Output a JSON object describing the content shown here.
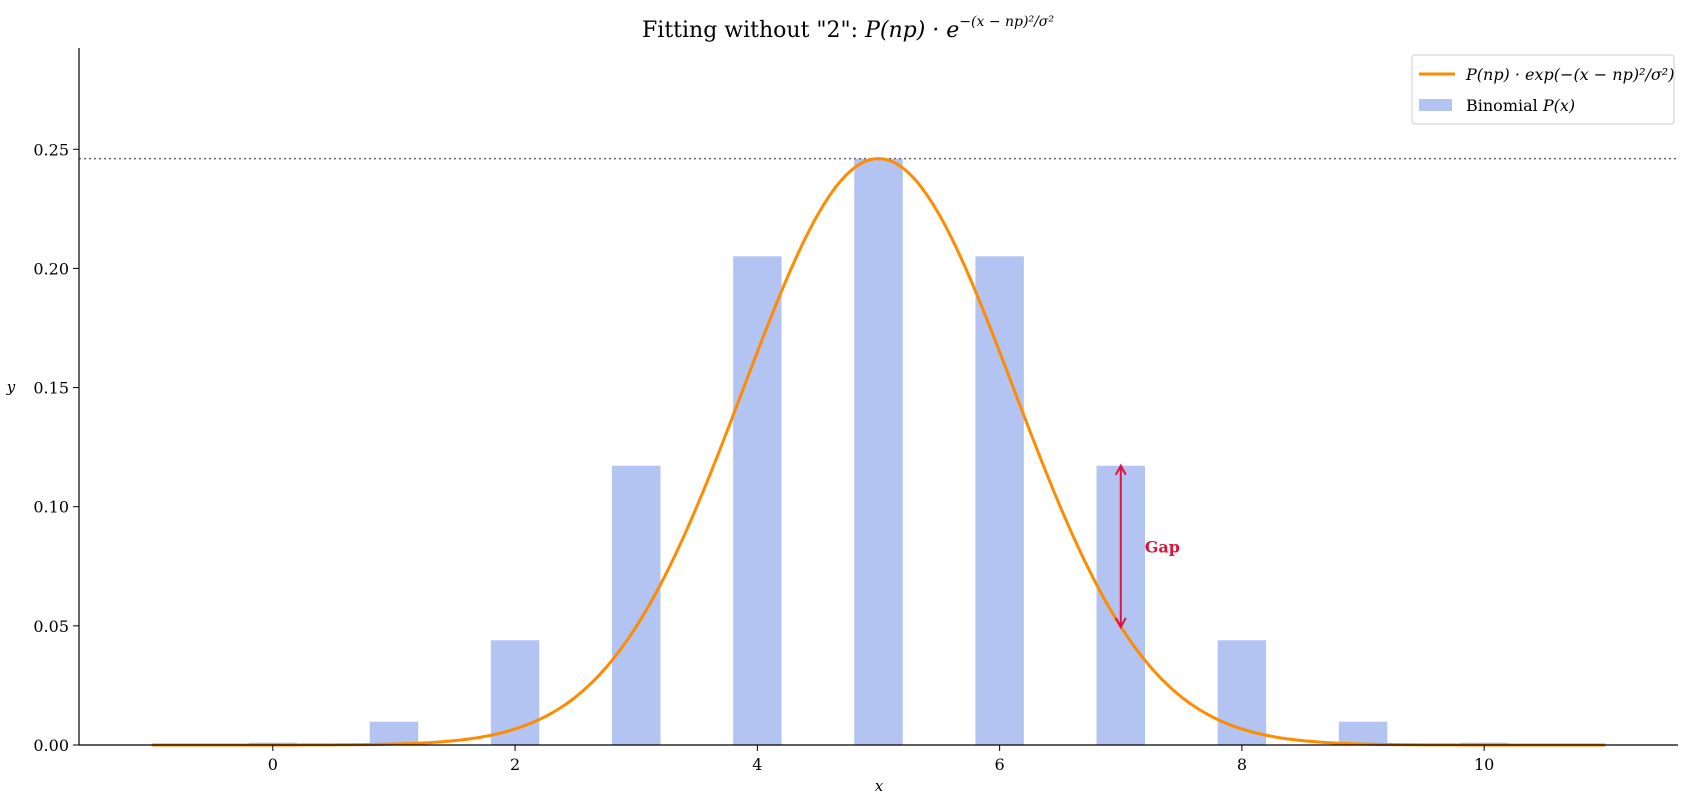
{
  "chart_data": {
    "type": "bar",
    "title_prefix": "Fitting without \"2\": ",
    "title_math": "P(np) · e",
    "title_sup": "−(x − np)²/σ²",
    "xlabel": "x",
    "ylabel": "y",
    "xlim": [
      -1.6,
      11.6
    ],
    "ylim": [
      0,
      0.2925
    ],
    "xticks": [
      0,
      2,
      4,
      6,
      8,
      10
    ],
    "yticks": [
      0.0,
      0.05,
      0.1,
      0.15,
      0.2,
      0.25
    ],
    "ytick_labels": [
      "0.00",
      "0.05",
      "0.10",
      "0.15",
      "0.20",
      "0.25"
    ],
    "grid": false,
    "legend_position": "top-right",
    "bars": {
      "name": "Binomial P(x)",
      "x": [
        0,
        1,
        2,
        3,
        4,
        5,
        6,
        7,
        8,
        9,
        10
      ],
      "values": [
        0.000977,
        0.009766,
        0.043945,
        0.117188,
        0.205078,
        0.246094,
        0.205078,
        0.117188,
        0.043945,
        0.009766,
        0.000977
      ],
      "color": "#b3c3f2"
    },
    "curve": {
      "name": "P(np) · exp(−(x − np)²/σ²)",
      "peak": 0.246094,
      "center": 5,
      "sigma_squared": 2.5,
      "x_range": [
        -1,
        11
      ],
      "color": "#ff8c00"
    },
    "reference_line": {
      "y": 0.246094,
      "style": "dotted",
      "color": "#666666"
    },
    "annotation": {
      "text": "Gap",
      "x": 7,
      "y_from": 0.0495,
      "y_to": 0.1172,
      "color": "#dc143c"
    },
    "legend": {
      "curve_label": "P(np) · exp(−(x − np)²/σ²)",
      "bar_label_prefix": "Binomial ",
      "bar_label_math": "P(x)"
    }
  }
}
